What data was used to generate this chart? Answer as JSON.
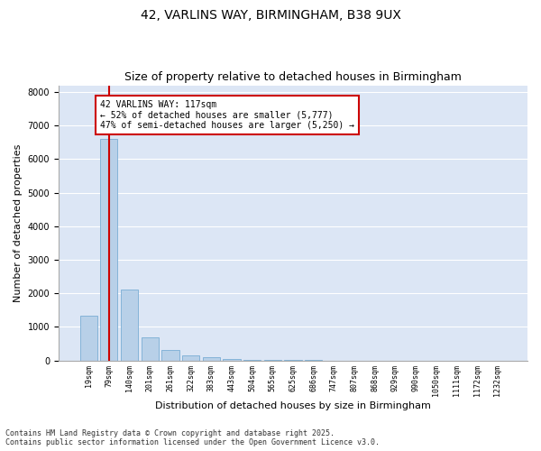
{
  "title_line1": "42, VARLINS WAY, BIRMINGHAM, B38 9UX",
  "title_line2": "Size of property relative to detached houses in Birmingham",
  "xlabel": "Distribution of detached houses by size in Birmingham",
  "ylabel": "Number of detached properties",
  "categories": [
    "19sqm",
    "79sqm",
    "140sqm",
    "201sqm",
    "261sqm",
    "322sqm",
    "383sqm",
    "443sqm",
    "504sqm",
    "565sqm",
    "625sqm",
    "686sqm",
    "747sqm",
    "807sqm",
    "868sqm",
    "929sqm",
    "990sqm",
    "1050sqm",
    "1111sqm",
    "1172sqm",
    "1232sqm"
  ],
  "values": [
    1320,
    6600,
    2100,
    680,
    300,
    150,
    90,
    50,
    20,
    10,
    5,
    3,
    2,
    1,
    1,
    0,
    0,
    0,
    0,
    0,
    0
  ],
  "bar_color": "#b8d0e8",
  "bar_edge_color": "#7aadd4",
  "vline_color": "#cc0000",
  "annotation_text": "42 VARLINS WAY: 117sqm\n← 52% of detached houses are smaller (5,777)\n47% of semi-detached houses are larger (5,250) →",
  "annotation_box_facecolor": "#ffffff",
  "annotation_box_edgecolor": "#cc0000",
  "ylim": [
    0,
    8200
  ],
  "yticks": [
    0,
    1000,
    2000,
    3000,
    4000,
    5000,
    6000,
    7000,
    8000
  ],
  "axes_bg_color": "#dce6f5",
  "grid_color": "#ffffff",
  "fig_bg_color": "#ffffff",
  "footer_line1": "Contains HM Land Registry data © Crown copyright and database right 2025.",
  "footer_line2": "Contains public sector information licensed under the Open Government Licence v3.0.",
  "title_fontsize": 10,
  "subtitle_fontsize": 9,
  "annotation_fontsize": 7,
  "footer_fontsize": 6,
  "ylabel_fontsize": 8,
  "xlabel_fontsize": 8,
  "xtick_fontsize": 6,
  "ytick_fontsize": 7
}
